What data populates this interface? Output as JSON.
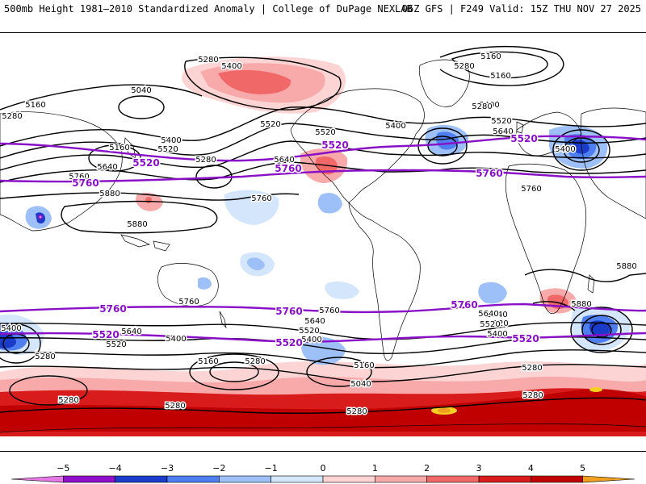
{
  "header": {
    "title_left": "500mb Height 1981–2010 Standardized Anomaly | College of DuPage NEXLAB",
    "title_right": "06Z GFS | F249 Valid: 15Z THU NOV 27 2025"
  },
  "map": {
    "contour_labels": [
      {
        "id": "c1",
        "text": "5280"
      },
      {
        "id": "c2",
        "text": "5400"
      },
      {
        "id": "c3",
        "text": "5160"
      },
      {
        "id": "c4",
        "text": "5280"
      },
      {
        "id": "c5",
        "text": "5160"
      },
      {
        "id": "c6",
        "text": "5040"
      },
      {
        "id": "c7",
        "text": "5160"
      },
      {
        "id": "c8",
        "text": "5400"
      },
      {
        "id": "c9",
        "text": "5520"
      },
      {
        "id": "c10",
        "text": "5160"
      },
      {
        "id": "c11",
        "text": "5400"
      },
      {
        "id": "c12",
        "text": "5520"
      },
      {
        "id": "c13",
        "text": "5280"
      },
      {
        "id": "c14",
        "text": "5640"
      },
      {
        "id": "c15",
        "text": "5760"
      },
      {
        "id": "c16",
        "text": "5880"
      },
      {
        "id": "c17",
        "text": "5640"
      },
      {
        "id": "c18",
        "text": "5760"
      },
      {
        "id": "c19",
        "text": "5880"
      },
      {
        "id": "c20",
        "text": "5400"
      },
      {
        "id": "c21",
        "text": "5520"
      },
      {
        "id": "c22",
        "text": "5280"
      },
      {
        "id": "c23",
        "text": "5520"
      },
      {
        "id": "c24",
        "text": "5640"
      },
      {
        "id": "c25",
        "text": "5400"
      },
      {
        "id": "c26",
        "text": "5760"
      },
      {
        "id": "c27",
        "text": "5880"
      },
      {
        "id": "c28",
        "text": "5880"
      },
      {
        "id": "c29",
        "text": "5760"
      },
      {
        "id": "c30",
        "text": "5760"
      },
      {
        "id": "c31",
        "text": "5640"
      },
      {
        "id": "c32",
        "text": "5520"
      },
      {
        "id": "c33",
        "text": "5400"
      },
      {
        "id": "c34",
        "text": "5400"
      },
      {
        "id": "c35",
        "text": "5640"
      },
      {
        "id": "c36",
        "text": "5520"
      },
      {
        "id": "c37",
        "text": "5400"
      },
      {
        "id": "c38",
        "text": "5280"
      },
      {
        "id": "c39",
        "text": "5160"
      },
      {
        "id": "c40",
        "text": "5280"
      },
      {
        "id": "c41",
        "text": "5160"
      },
      {
        "id": "c42",
        "text": "5040"
      },
      {
        "id": "c43",
        "text": "5280"
      },
      {
        "id": "c44",
        "text": "5280"
      },
      {
        "id": "c45",
        "text": "5280"
      },
      {
        "id": "c46",
        "text": "5640"
      },
      {
        "id": "c47",
        "text": "5520"
      },
      {
        "id": "c48",
        "text": "5400"
      },
      {
        "id": "c49",
        "text": "5280"
      },
      {
        "id": "c50",
        "text": "5640"
      },
      {
        "id": "c51",
        "text": "5520"
      },
      {
        "id": "c52",
        "text": "5280"
      },
      {
        "id": "c53",
        "text": "5280"
      }
    ],
    "reference_labels": [
      {
        "id": "r1",
        "text": "5520"
      },
      {
        "id": "r2",
        "text": "5520"
      },
      {
        "id": "r3",
        "text": "5520"
      },
      {
        "id": "r4",
        "text": "5760"
      },
      {
        "id": "r5",
        "text": "5760"
      },
      {
        "id": "r6",
        "text": "5760"
      },
      {
        "id": "r7",
        "text": "5760"
      },
      {
        "id": "r8",
        "text": "5760"
      },
      {
        "id": "r9",
        "text": "5760"
      },
      {
        "id": "r10",
        "text": "5520"
      },
      {
        "id": "r11",
        "text": "5520"
      },
      {
        "id": "r12",
        "text": "5520"
      }
    ]
  },
  "colors": {
    "anom_neg5": "#e478e4",
    "anom_neg4": "#8e10c8",
    "anom_neg3": "#1a3cc8",
    "anom_neg2": "#4e7ef0",
    "anom_neg1": "#9ec0f8",
    "anom_neg0": "#d4e6fc",
    "anom_pos0": "#fcd4d4",
    "anom_pos1": "#f8aaaa",
    "anom_pos2": "#f06868",
    "anom_pos3": "#d81c1c",
    "anom_pos4": "#c00000",
    "anom_pos5": "#f0a020",
    "anom_pos6": "#f8d020",
    "ref_line": "#8a10c8"
  },
  "colorbar": {
    "ticks": [
      "−5",
      "−4",
      "−3",
      "−2",
      "−1",
      "0",
      "1",
      "2",
      "3",
      "4",
      "5"
    ]
  }
}
